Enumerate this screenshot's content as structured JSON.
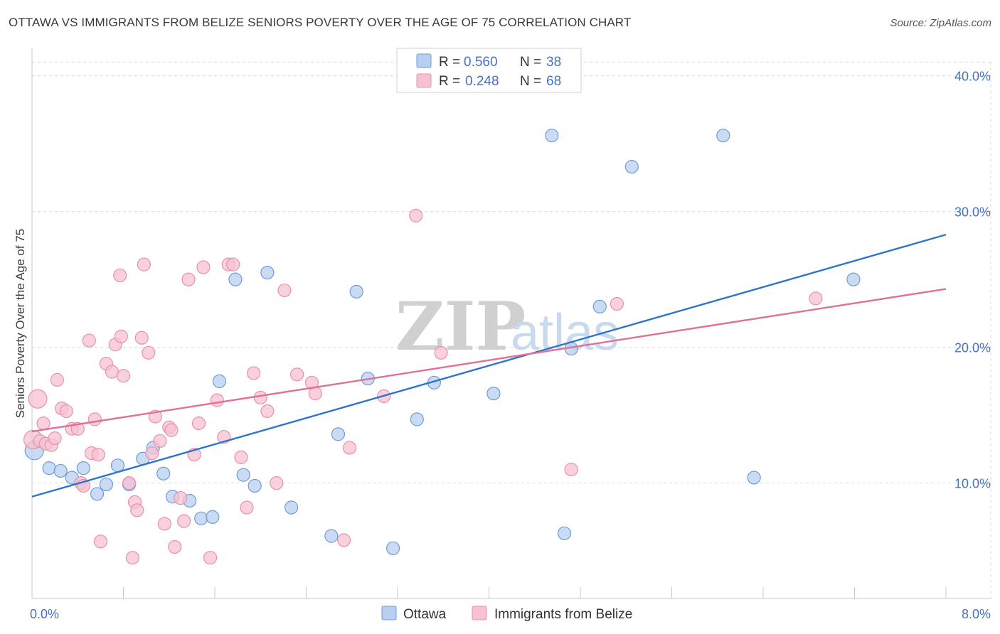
{
  "header": {
    "title": "OTTAWA VS IMMIGRANTS FROM BELIZE SENIORS POVERTY OVER THE AGE OF 75 CORRELATION CHART",
    "source": "Source: ZipAtlas.com"
  },
  "watermark": {
    "zip": "ZIP",
    "atlas": "atlas"
  },
  "colors": {
    "ottawa_fill": "#b8cff0",
    "ottawa_stroke": "#6f9bd8",
    "ottawa_line": "#2f74cc",
    "belize_fill": "#f6c2d2",
    "belize_stroke": "#e890ad",
    "belize_line": "#e07098",
    "axis_text": "#4472c4",
    "grid": "#d9d9d9"
  },
  "legend": {
    "rows": [
      {
        "r_label": "R =",
        "r_value": "0.560",
        "n_label": "N =",
        "n_value": "38"
      },
      {
        "r_label": "R =",
        "r_value": "0.248",
        "n_label": "N =",
        "n_value": "68"
      }
    ]
  },
  "chart_data": {
    "type": "scatter",
    "title": "OTTAWA VS IMMIGRANTS FROM BELIZE SENIORS POVERTY OVER THE AGE OF 75 CORRELATION CHART",
    "xlabel": "",
    "ylabel": "Seniors Poverty Over the Age of 75",
    "xlim": [
      0,
      8
    ],
    "ylim": [
      1.5,
      41.5
    ],
    "x_tick_labels": [
      {
        "value": 0,
        "label": "0.0%"
      },
      {
        "value": 8,
        "label": "8.0%"
      }
    ],
    "y_ticks": [
      {
        "value": 10,
        "label": "10.0%"
      },
      {
        "value": 20,
        "label": "20.0%"
      },
      {
        "value": 30,
        "label": "30.0%"
      },
      {
        "value": 40,
        "label": "40.0%"
      }
    ],
    "grid": true,
    "legend_position": "top-center",
    "series": [
      {
        "name": "Ottawa",
        "trend": [
          [
            0,
            9.0
          ],
          [
            8,
            28.3
          ]
        ],
        "points": [
          [
            0.02,
            12.4
          ],
          [
            0.15,
            11.1
          ],
          [
            0.25,
            10.9
          ],
          [
            0.35,
            10.4
          ],
          [
            0.45,
            11.1
          ],
          [
            0.57,
            9.2
          ],
          [
            0.65,
            9.9
          ],
          [
            0.75,
            11.3
          ],
          [
            0.85,
            9.9
          ],
          [
            0.97,
            11.8
          ],
          [
            1.06,
            12.6
          ],
          [
            1.15,
            10.7
          ],
          [
            1.23,
            9.0
          ],
          [
            1.38,
            8.7
          ],
          [
            1.48,
            7.4
          ],
          [
            1.58,
            7.5
          ],
          [
            1.64,
            17.5
          ],
          [
            1.78,
            25.0
          ],
          [
            1.85,
            10.6
          ],
          [
            1.95,
            9.8
          ],
          [
            2.06,
            25.5
          ],
          [
            2.27,
            8.2
          ],
          [
            2.62,
            6.1
          ],
          [
            2.68,
            13.6
          ],
          [
            2.84,
            24.1
          ],
          [
            2.94,
            17.7
          ],
          [
            3.16,
            5.2
          ],
          [
            3.37,
            14.7
          ],
          [
            3.52,
            17.4
          ],
          [
            4.04,
            16.6
          ],
          [
            4.55,
            35.6
          ],
          [
            4.66,
            6.3
          ],
          [
            4.72,
            19.9
          ],
          [
            4.97,
            23.0
          ],
          [
            5.25,
            33.3
          ],
          [
            6.05,
            35.6
          ],
          [
            6.32,
            10.4
          ],
          [
            7.19,
            25.0
          ]
        ]
      },
      {
        "name": "Immigrants from Belize",
        "trend": [
          [
            0,
            13.8
          ],
          [
            8,
            24.3
          ]
        ],
        "points": [
          [
            0.01,
            13.2
          ],
          [
            0.05,
            16.2
          ],
          [
            0.07,
            13.1
          ],
          [
            0.1,
            14.4
          ],
          [
            0.12,
            12.9
          ],
          [
            0.17,
            12.8
          ],
          [
            0.2,
            13.3
          ],
          [
            0.22,
            17.6
          ],
          [
            0.26,
            15.5
          ],
          [
            0.3,
            15.3
          ],
          [
            0.35,
            14.0
          ],
          [
            0.4,
            14.0
          ],
          [
            0.43,
            10.0
          ],
          [
            0.45,
            9.8
          ],
          [
            0.5,
            20.5
          ],
          [
            0.52,
            12.2
          ],
          [
            0.55,
            14.7
          ],
          [
            0.58,
            12.1
          ],
          [
            0.6,
            5.7
          ],
          [
            0.65,
            18.8
          ],
          [
            0.7,
            18.2
          ],
          [
            0.73,
            20.2
          ],
          [
            0.77,
            25.3
          ],
          [
            0.78,
            20.8
          ],
          [
            0.8,
            17.9
          ],
          [
            0.85,
            10.0
          ],
          [
            0.88,
            4.5
          ],
          [
            0.9,
            8.6
          ],
          [
            0.92,
            8.0
          ],
          [
            0.96,
            20.7
          ],
          [
            0.98,
            26.1
          ],
          [
            1.02,
            19.6
          ],
          [
            1.05,
            12.2
          ],
          [
            1.08,
            14.9
          ],
          [
            1.12,
            13.1
          ],
          [
            1.16,
            7.0
          ],
          [
            1.2,
            14.1
          ],
          [
            1.22,
            13.9
          ],
          [
            1.25,
            5.3
          ],
          [
            1.3,
            8.9
          ],
          [
            1.33,
            7.2
          ],
          [
            1.37,
            25.0
          ],
          [
            1.42,
            12.1
          ],
          [
            1.46,
            14.4
          ],
          [
            1.5,
            25.9
          ],
          [
            1.56,
            4.5
          ],
          [
            1.62,
            16.1
          ],
          [
            1.68,
            13.4
          ],
          [
            1.72,
            26.1
          ],
          [
            1.76,
            26.1
          ],
          [
            1.83,
            11.9
          ],
          [
            1.88,
            8.2
          ],
          [
            1.94,
            18.1
          ],
          [
            2.0,
            16.3
          ],
          [
            2.06,
            15.3
          ],
          [
            2.14,
            10.0
          ],
          [
            2.21,
            24.2
          ],
          [
            2.32,
            18.0
          ],
          [
            2.45,
            17.4
          ],
          [
            2.48,
            16.6
          ],
          [
            2.73,
            5.8
          ],
          [
            2.78,
            12.6
          ],
          [
            3.08,
            16.4
          ],
          [
            3.36,
            29.7
          ],
          [
            3.58,
            19.6
          ],
          [
            4.72,
            11.0
          ],
          [
            5.12,
            23.2
          ],
          [
            6.86,
            23.6
          ]
        ]
      }
    ]
  }
}
